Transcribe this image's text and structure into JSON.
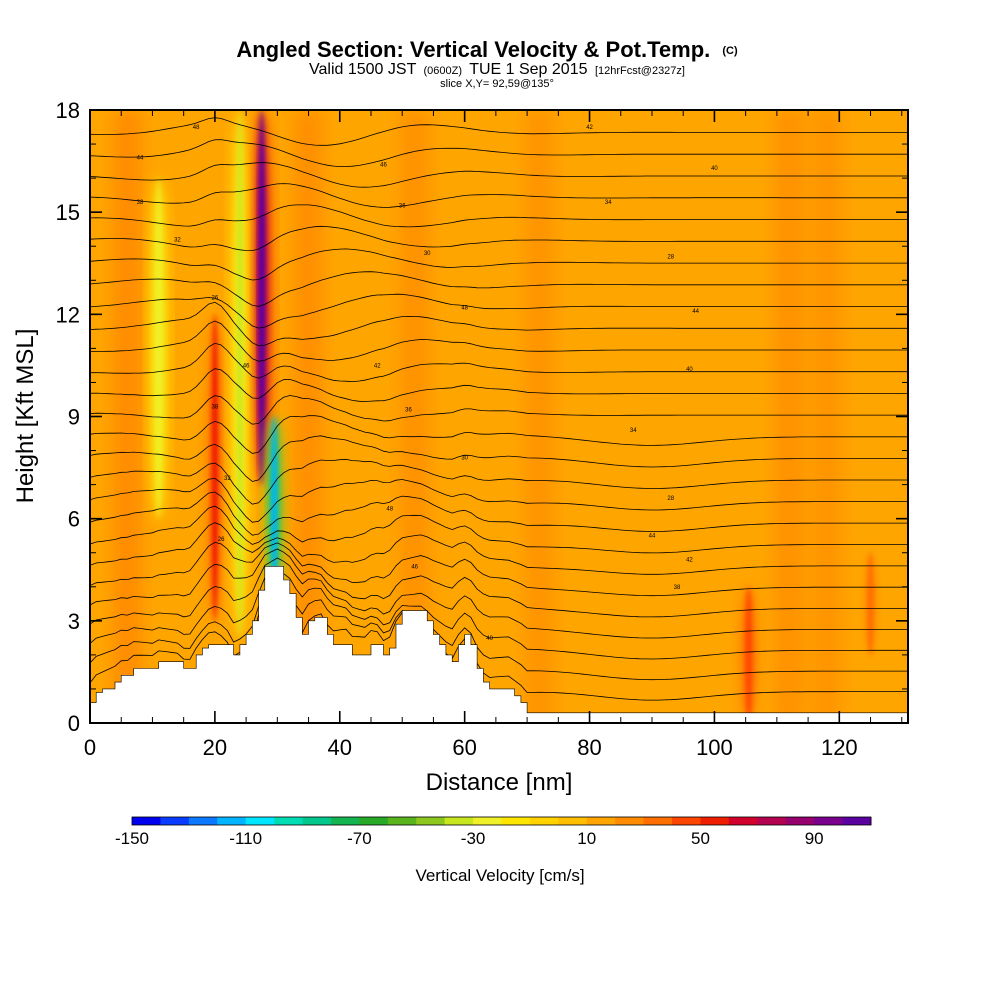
{
  "chart_data": {
    "type": "heatmap",
    "title": {
      "main": "Angled Section: Vertical Velocity & Pot.Temp.",
      "main_unit": "(C)",
      "valid_prefix": "Valid 1500 JST",
      "valid_utc": "(0600Z)",
      "valid_date": "TUE 1 Sep 2015",
      "forecast": "[12hrFcst@2327z]",
      "slice": "slice X,Y= 92,59@135°"
    },
    "xlabel": "Distance [nm]",
    "ylabel": "Height [Kft MSL]",
    "xlim": [
      0,
      131
    ],
    "ylim": [
      0,
      18
    ],
    "x_ticks": [
      "0",
      "20",
      "40",
      "60",
      "80",
      "100",
      "120"
    ],
    "y_ticks": [
      "0",
      "3",
      "6",
      "9",
      "12",
      "15",
      "18"
    ],
    "colorbar": {
      "title": "Vertical Velocity [cm/s]",
      "labels": [
        "-150",
        "-110",
        "-70",
        "-30",
        "10",
        "50",
        "90"
      ],
      "range": [
        -150,
        110
      ],
      "step": 10,
      "colors": [
        "#0000f0",
        "#0a3cff",
        "#0a78ff",
        "#00b4ff",
        "#00e6ff",
        "#00dcb4",
        "#00c88c",
        "#14b450",
        "#28aa28",
        "#5ab41e",
        "#8cc81e",
        "#c8e61e",
        "#f0f028",
        "#ffe600",
        "#ffd200",
        "#ffbe00",
        "#ffa500",
        "#ff8c00",
        "#ff6e00",
        "#ff4600",
        "#f01e00",
        "#d2002d",
        "#b40050",
        "#96006e",
        "#78008c",
        "#5a00a0"
      ]
    },
    "velocity_field": {
      "background_cm_s": 15,
      "features": [
        {
          "kind": "updraft",
          "x": 27.5,
          "z_range": [
            7,
            18
          ],
          "peak_cm_s": 100
        },
        {
          "kind": "updraft",
          "x": 20,
          "z_range": [
            3,
            12
          ],
          "peak_cm_s": 50
        },
        {
          "kind": "downdraft",
          "x": 29.5,
          "z_range": [
            3.5,
            9
          ],
          "peak_cm_s": -120
        },
        {
          "kind": "downdraft",
          "x": 24,
          "z_range": [
            2.5,
            18
          ],
          "peak_cm_s": -35
        },
        {
          "kind": "downdraft",
          "x": 11,
          "z_range": [
            6,
            16
          ],
          "peak_cm_s": -30
        },
        {
          "kind": "updraft",
          "x": 105.5,
          "z_range": [
            0,
            4
          ],
          "peak_cm_s": 45
        },
        {
          "kind": "updraft",
          "x": 125,
          "z_range": [
            2,
            5
          ],
          "peak_cm_s": 35
        }
      ]
    },
    "terrain_kft": {
      "x": [
        0,
        1,
        2,
        4,
        5,
        6,
        7,
        8,
        9,
        10,
        11,
        12,
        13,
        14,
        15,
        16,
        17,
        18,
        19,
        20,
        21,
        22,
        23,
        24,
        25,
        26,
        27,
        28,
        29,
        30,
        31,
        32,
        33,
        34,
        35,
        36,
        37,
        38,
        39,
        40,
        41,
        42,
        43,
        44,
        45,
        46,
        47,
        48,
        49,
        50,
        51,
        52,
        53,
        54,
        55,
        56,
        57,
        58,
        59,
        60,
        61,
        62,
        63,
        64,
        65,
        66,
        67,
        68,
        69,
        70,
        71,
        72,
        80,
        90,
        100,
        110,
        120,
        131
      ],
      "z": [
        0.6,
        0.9,
        1.0,
        1.2,
        1.4,
        1.4,
        1.6,
        1.6,
        1.6,
        1.6,
        1.8,
        1.8,
        1.8,
        1.8,
        1.6,
        1.6,
        2.0,
        2.2,
        2.3,
        2.3,
        2.3,
        2.3,
        2.0,
        2.3,
        2.6,
        3.0,
        3.9,
        4.6,
        4.6,
        4.6,
        4.2,
        3.8,
        3.1,
        2.6,
        3.0,
        3.1,
        3.1,
        2.6,
        2.3,
        2.3,
        2.3,
        2.0,
        2.0,
        2.0,
        2.3,
        2.3,
        2.0,
        2.2,
        2.9,
        3.3,
        3.3,
        3.3,
        3.3,
        3.0,
        2.6,
        2.3,
        2.0,
        1.8,
        2.3,
        2.6,
        2.3,
        1.6,
        1.2,
        1.0,
        1.0,
        1.0,
        1.0,
        0.8,
        0.6,
        0.3,
        0.3,
        0.3,
        0.3,
        0.3,
        0.3,
        0.3,
        0.3,
        0.3
      ]
    },
    "isentropes": {
      "count": 27,
      "base_kft": 0.7,
      "spacing_kft": 0.64,
      "label_values": [
        "48",
        "44",
        "46",
        "42",
        "40",
        "38",
        "36",
        "34",
        "32",
        "30",
        "28",
        "26"
      ]
    },
    "grid": false,
    "colorbar_position": "bottom"
  }
}
